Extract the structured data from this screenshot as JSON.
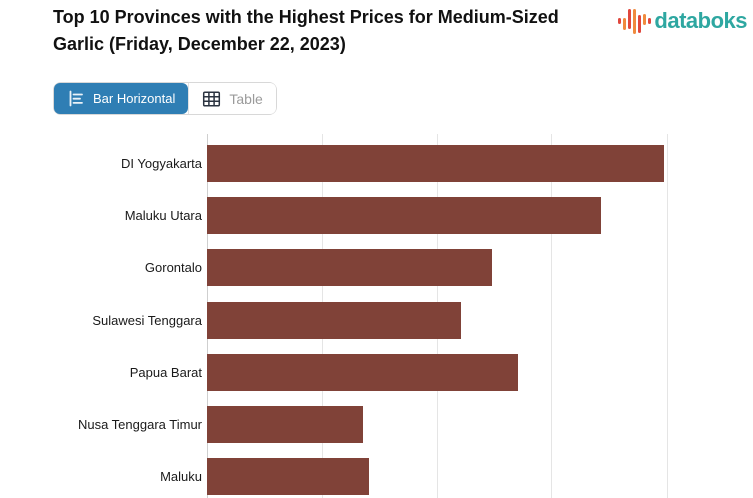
{
  "header": {
    "title": "Top 10 Provinces with the Highest Prices for Medium-Sized Garlic (Friday, December 22, 2023)",
    "title_line1": "Top 10 Provinces with the Highest Prices for Medium-Sized",
    "title_line2": "Garlic (Friday, December 22, 2023)",
    "logo": {
      "text": "databoks",
      "icon": "databoks-pulse-bars-icon",
      "text_color": "#2EA7A1",
      "icon_red": "#E0473D",
      "icon_orange": "#F08A3E"
    }
  },
  "toolbar": {
    "view_toggle": [
      {
        "label": "Bar Horizontal",
        "icon": "horizontal-bar-chart-icon",
        "active": true
      },
      {
        "label": "Table",
        "icon": "table-grid-icon",
        "active": false
      }
    ],
    "active_bg": "#2F7EB4",
    "inactive_text_color": "#9B9B9B"
  },
  "chart_data": {
    "type": "bar",
    "orientation": "horizontal",
    "title": "Top 10 Provinces with the Highest Prices for Medium-Sized Garlic (Friday, December 22, 2023)",
    "categories": [
      "DI Yogyakarta",
      "Maluku Utara",
      "Gorontalo",
      "Sulawesi Tenggara",
      "Papua Barat",
      "Nusa Tenggara Timur",
      "Maluku"
    ],
    "values_percent_of_visible_axis": [
      83.7,
      72.2,
      52.2,
      46.5,
      57.0,
      28.5,
      29.6
    ],
    "values_in_gridline_units": [
      3.35,
      2.89,
      2.09,
      1.86,
      2.28,
      1.14,
      1.18
    ],
    "bar_color": "#804238",
    "grid": true,
    "gridline_color": "#E5E5E5",
    "axis_line_color": "#CFCFCF",
    "gridline_intervals_visible": 4,
    "x_axis_labels_visible": false,
    "rows_visible": 7,
    "legend": "none",
    "note": "Chart is cropped: only 7 of the top-10 rows and no x-axis value labels are visible; values estimated in gridline units"
  }
}
